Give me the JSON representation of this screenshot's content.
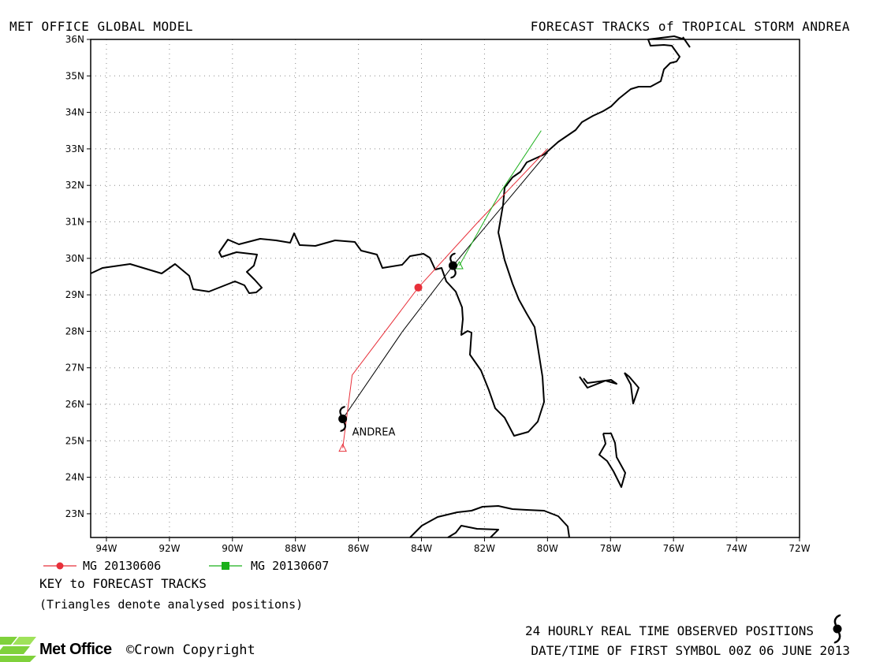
{
  "header": {
    "left_title": "MET OFFICE GLOBAL MODEL",
    "right_title": "FORECAST TRACKS of TROPICAL STORM ANDREA"
  },
  "map": {
    "lon_range": [
      -94.5,
      -72
    ],
    "lat_range": [
      22.35,
      36
    ],
    "lon_tick_labels": [
      "94W",
      "92W",
      "90W",
      "88W",
      "86W",
      "84W",
      "82W",
      "80W",
      "78W",
      "76W",
      "74W",
      "72W"
    ],
    "lon_ticks": [
      -94,
      -92,
      -90,
      -88,
      -86,
      -84,
      -82,
      -80,
      -78,
      -76,
      -74,
      -72
    ],
    "lat_tick_labels": [
      "23N",
      "24N",
      "25N",
      "26N",
      "27N",
      "28N",
      "29N",
      "30N",
      "31N",
      "32N",
      "33N",
      "34N",
      "35N",
      "36N"
    ],
    "lat_ticks": [
      23,
      24,
      25,
      26,
      27,
      28,
      29,
      30,
      31,
      32,
      33,
      34,
      35,
      36
    ],
    "grid": "dotted"
  },
  "storm": {
    "name": "ANDREA",
    "observed_track": [
      [
        -86.5,
        25.6
      ],
      [
        -84.6,
        28.0
      ],
      [
        -83.0,
        29.8
      ],
      [
        -80.0,
        32.9
      ]
    ],
    "observed_symbols": [
      [
        -86.5,
        25.6
      ],
      [
        -83.0,
        29.8
      ]
    ]
  },
  "forecast_tracks": [
    {
      "name": "MG 20130606",
      "color": "#e8303a",
      "analysed_position": [
        -86.5,
        24.8
      ],
      "track": [
        [
          -86.5,
          24.8
        ],
        [
          -86.2,
          26.8
        ],
        [
          -84.1,
          29.2
        ],
        [
          -82.2,
          31.0
        ],
        [
          -80.0,
          33.0
        ]
      ],
      "markers": [
        [
          -84.1,
          29.2
        ]
      ]
    },
    {
      "name": "MG 20130607",
      "color": "#1bb01b",
      "analysed_position": [
        -82.8,
        29.8
      ],
      "track": [
        [
          -82.8,
          29.8
        ],
        [
          -81.5,
          31.8
        ],
        [
          -80.2,
          33.5
        ]
      ],
      "markers": []
    }
  ],
  "legend": {
    "series_1": "MG 20130606",
    "series_2": "MG 20130607",
    "key_title": "KEY to FORECAST TRACKS",
    "key_note": "(Triangles denote analysed positions)"
  },
  "footer": {
    "observed_note": "24 HOURLY REAL TIME OBSERVED POSITIONS",
    "datetime_note": "DATE/TIME OF FIRST SYMBOL 00Z 06 JUNE 2013",
    "logo_text": "Met Office",
    "copyright": "©Crown Copyright"
  },
  "colors": {
    "forecast_red": "#e8303a",
    "forecast_green": "#1bb01b",
    "logo_green": "#7fd13b"
  }
}
